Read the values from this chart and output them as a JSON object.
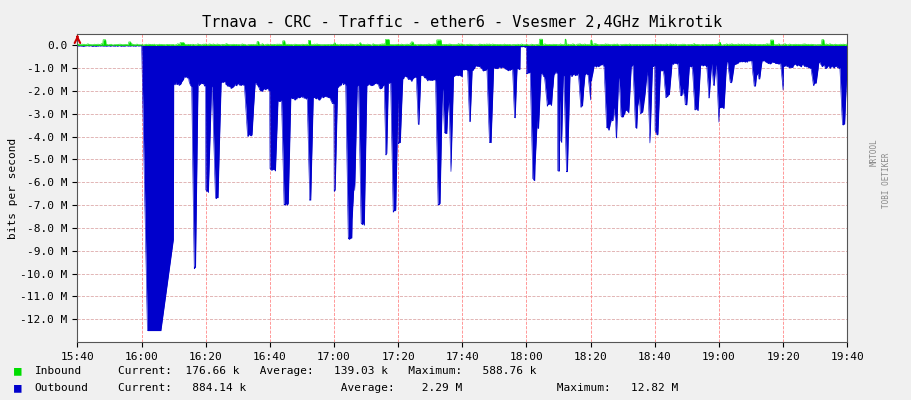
{
  "title": "Trnava - CRC - Traffic - ether6 - Vsesmer 2,4GHz Mikrotik",
  "ylabel": "bits per second",
  "background_color": "#f0f0f0",
  "plot_bg_color": "#ffffff",
  "grid_color_h": "#ddaaaa",
  "grid_color_v": "#ff8888",
  "inbound_color": "#00dd00",
  "outbound_color": "#0000cc",
  "ylim_min": -13000000,
  "ylim_max": 500000,
  "ytick_values": [
    0,
    -1000000,
    -2000000,
    -3000000,
    -4000000,
    -5000000,
    -6000000,
    -7000000,
    -8000000,
    -9000000,
    -10000000,
    -11000000,
    -12000000
  ],
  "ytick_labels": [
    "0.0",
    "-1.0 M",
    "-2.0 M",
    "-3.0 M",
    "-4.0 M",
    "-5.0 M",
    "-6.0 M",
    "-7.0 M",
    "-8.0 M",
    "-9.0 M",
    "-10.0 M",
    "-11.0 M",
    "-12.0 M"
  ],
  "x_tick_labels": [
    "15:40",
    "16:00",
    "16:20",
    "16:40",
    "17:00",
    "17:20",
    "17:40",
    "18:00",
    "18:20",
    "18:40",
    "19:00",
    "19:20",
    "19:40"
  ],
  "x_tick_positions": [
    0,
    20,
    40,
    60,
    80,
    100,
    120,
    140,
    160,
    180,
    200,
    220,
    240
  ],
  "vertical_lines_x": [
    20,
    40,
    60,
    80,
    100,
    120,
    140,
    160,
    180,
    200,
    220,
    240
  ],
  "title_fontsize": 11,
  "tick_fontsize": 8,
  "axis_fontsize": 8
}
